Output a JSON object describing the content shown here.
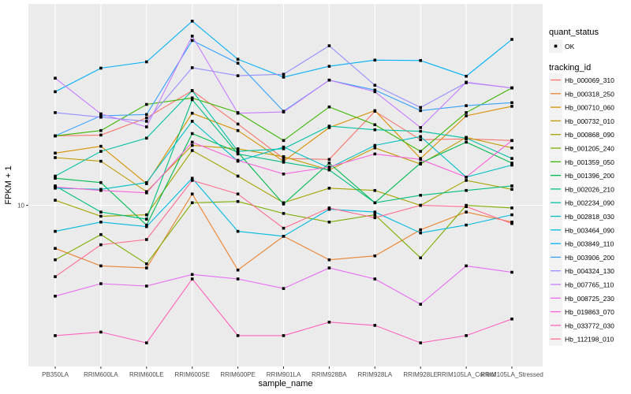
{
  "chart_data": {
    "type": "line",
    "title": "",
    "xlabel": "sample_name",
    "ylabel": "FPKM + 1",
    "y_scale": "log10",
    "ylim": [
      3.2,
      42
    ],
    "y_ticks": [
      {
        "value": 10,
        "label": "10"
      }
    ],
    "grid": true,
    "categories": [
      "PB350LA",
      "RRIM600LA",
      "RRIM600LE",
      "RRIM600SE",
      "RRIM600PE",
      "RRIM901LA",
      "RRIM928BA",
      "RRIM928LA",
      "RRIM928LE",
      "RRIM105LA_Control",
      "RRIM105LA_Stressed"
    ],
    "legend_position": "right",
    "shape_legend": {
      "title": "quant_status",
      "entries": [
        "OK"
      ]
    },
    "color_legend_title": "tracking_id",
    "series": [
      {
        "name": "Hb_000069_310",
        "color": "#F8766D",
        "values": [
          17.0,
          17.1,
          19.5,
          24.0,
          18.6,
          14.3,
          14.2,
          20.5,
          16.5,
          16.6,
          16.4
        ]
      },
      {
        "name": "Hb_000318_250",
        "color": "#EA8331",
        "values": [
          7.2,
          6.3,
          6.2,
          10.9,
          6.1,
          7.9,
          6.6,
          6.8,
          8.3,
          9.5,
          8.8
        ]
      },
      {
        "name": "Hb_000710_060",
        "color": "#D89000",
        "values": [
          14.9,
          15.7,
          11.8,
          20.2,
          17.7,
          14.0,
          18.1,
          20.6,
          14.3,
          19.8,
          21.3
        ]
      },
      {
        "name": "Hb_000732_010",
        "color": "#C09B00",
        "values": [
          14.4,
          14.0,
          11.1,
          15.8,
          15.4,
          14.5,
          13.1,
          15.5,
          13.7,
          16.8,
          15.5
        ]
      },
      {
        "name": "Hb_000868_090",
        "color": "#A3A500",
        "values": [
          10.4,
          9.2,
          9.3,
          15.2,
          12.5,
          10.2,
          11.4,
          11.2,
          10.0,
          12.1,
          11.3
        ]
      },
      {
        "name": "Hb_001205_240",
        "color": "#7CAE00",
        "values": [
          6.6,
          8.0,
          6.4,
          10.2,
          10.3,
          9.4,
          8.8,
          9.3,
          6.7,
          10.0,
          9.8
        ]
      },
      {
        "name": "Hb_001359_050",
        "color": "#39B600",
        "values": [
          17.0,
          17.7,
          21.6,
          22.7,
          20.3,
          16.4,
          21.2,
          18.5,
          15.1,
          20.3,
          24.5
        ]
      },
      {
        "name": "Hb_001396_200",
        "color": "#00BB4E",
        "values": [
          12.3,
          11.9,
          8.6,
          17.3,
          15.0,
          10.1,
          13.8,
          10.2,
          13.8,
          16.2,
          13.8
        ]
      },
      {
        "name": "Hb_002026_210",
        "color": "#00BF7D",
        "values": [
          11.6,
          9.5,
          9.0,
          22.4,
          14.8,
          13.9,
          13.1,
          10.2,
          10.8,
          11.2,
          11.6
        ]
      },
      {
        "name": "Hb_002234_090",
        "color": "#00C1A3",
        "values": [
          12.5,
          15.1,
          16.7,
          24.0,
          15.1,
          15.4,
          18.3,
          17.8,
          17.6,
          16.7,
          14.3
        ]
      },
      {
        "name": "Hb_002818_030",
        "color": "#00BFC4",
        "values": [
          11.4,
          11.3,
          11.9,
          19.0,
          14.0,
          15.6,
          13.3,
          15.8,
          16.9,
          12.4,
          13.6
        ]
      },
      {
        "name": "Hb_003464_090",
        "color": "#00BAE0",
        "values": [
          8.2,
          8.8,
          8.5,
          12.3,
          8.2,
          7.9,
          9.7,
          9.5,
          8.1,
          8.6,
          9.3
        ]
      },
      {
        "name": "Hb_003849_110",
        "color": "#00B0F6",
        "values": [
          23.8,
          28.5,
          29.9,
          40.8,
          30.5,
          26.6,
          28.9,
          30.3,
          30.2,
          26.8,
          35.5
        ]
      },
      {
        "name": "Hb_003906_200",
        "color": "#35A2FF",
        "values": [
          17.0,
          19.8,
          20.0,
          35.2,
          29.6,
          20.5,
          26.0,
          24.1,
          20.6,
          21.4,
          21.9
        ]
      },
      {
        "name": "Hb_004324_130",
        "color": "#9590FF",
        "values": [
          20.3,
          19.6,
          19.0,
          28.6,
          26.9,
          27.2,
          33.8,
          25.0,
          21.1,
          25.5,
          24.5
        ]
      },
      {
        "name": "Hb_007765_110",
        "color": "#C77CFF",
        "values": [
          26.4,
          20.1,
          18.2,
          36.4,
          20.2,
          20.4,
          26.0,
          23.8,
          18.1,
          25.6,
          24.5
        ]
      },
      {
        "name": "Hb_008725_230",
        "color": "#E76BF3",
        "values": [
          5.0,
          5.5,
          5.4,
          5.9,
          5.7,
          5.3,
          6.2,
          5.7,
          4.7,
          6.3,
          6.0
        ]
      },
      {
        "name": "Hb_019863_070",
        "color": "#FA62DB",
        "values": [
          11.5,
          11.2,
          11.0,
          16.2,
          14.1,
          12.7,
          13.4,
          14.8,
          14.2,
          12.4,
          16.4
        ]
      },
      {
        "name": "Hb_033772_030",
        "color": "#FF62BC",
        "values": [
          3.7,
          3.8,
          3.5,
          5.7,
          3.7,
          3.7,
          4.1,
          4.0,
          3.5,
          3.7,
          4.2
        ]
      },
      {
        "name": "Hb_112198_010",
        "color": "#FF6C91",
        "values": [
          5.8,
          7.4,
          7.7,
          12.1,
          10.9,
          8.4,
          9.8,
          9.1,
          10.0,
          9.9,
          8.7
        ]
      }
    ]
  }
}
